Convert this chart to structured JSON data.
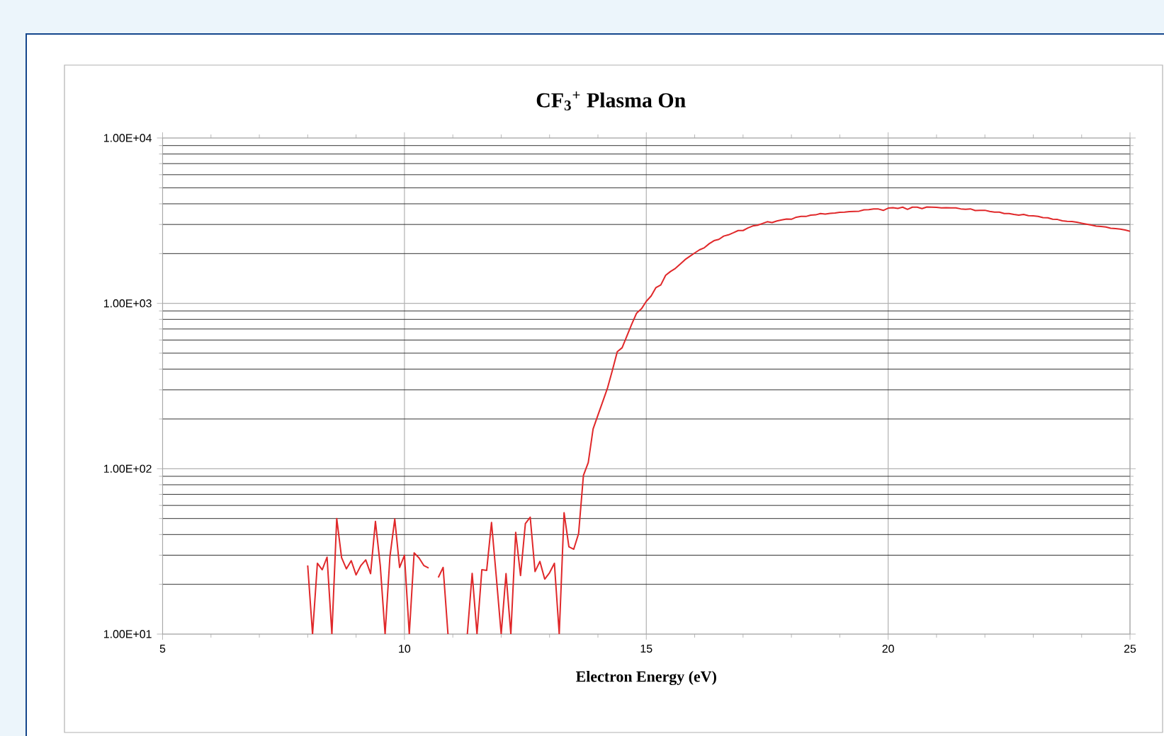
{
  "chart_data": {
    "type": "line",
    "title": "CF$_{3}$$^{+}$ Plasma On",
    "xlabel": "Electron Energy (eV)",
    "x": [
      8.0,
      8.1,
      8.2,
      8.3,
      8.4,
      8.5,
      8.6,
      8.7,
      8.8,
      8.9,
      9.0,
      9.1,
      9.2,
      9.3,
      9.4,
      9.5,
      9.6,
      9.7,
      9.8,
      9.9,
      10.0,
      10.1,
      10.2,
      10.3,
      10.4,
      10.5,
      10.6,
      10.7,
      10.8,
      10.9,
      11.0,
      11.1,
      11.2,
      11.3,
      11.4,
      11.5,
      11.6,
      11.7,
      11.8,
      11.9,
      12.0,
      12.1,
      12.2,
      12.3,
      12.4,
      12.5,
      12.6,
      12.7,
      12.8,
      12.9,
      13.0,
      13.1,
      13.2,
      13.3,
      13.4,
      13.5,
      13.6,
      13.7,
      13.8,
      13.9,
      14.0,
      14.1,
      14.2,
      14.3,
      14.4,
      14.5,
      14.6,
      14.7,
      14.8,
      14.9,
      15.0,
      15.1,
      15.2,
      15.3,
      15.4,
      15.5,
      15.6,
      15.7,
      15.8,
      15.9,
      16.0,
      16.1,
      16.2,
      16.3,
      16.4,
      16.5,
      16.6,
      16.7,
      16.8,
      16.9,
      17.0,
      17.1,
      17.2,
      17.3,
      17.4,
      17.5,
      17.6,
      17.7,
      17.8,
      17.9,
      18.0,
      18.1,
      18.2,
      18.3,
      18.4,
      18.5,
      18.6,
      18.7,
      18.8,
      18.9,
      19.0,
      19.1,
      19.2,
      19.3,
      19.4,
      19.5,
      19.6,
      19.7,
      19.8,
      19.9,
      20.0,
      20.1,
      20.2,
      20.3,
      20.4,
      20.5,
      20.6,
      20.7,
      20.8,
      20.9,
      21.0,
      21.1,
      21.2,
      21.3,
      21.4,
      21.5,
      21.6,
      21.7,
      21.8,
      21.9,
      22.0,
      22.1,
      22.2,
      22.3,
      22.4,
      22.5,
      22.6,
      22.7,
      22.8,
      22.9,
      23.0,
      23.1,
      23.2,
      23.3,
      23.4,
      23.5,
      23.6,
      23.7,
      23.8,
      23.9,
      24.0,
      24.1,
      24.2,
      24.3,
      24.4,
      24.5,
      24.6,
      24.7,
      24.8,
      24.9,
      25.0
    ],
    "series": [
      {
        "color": "#e0282a",
        "values": [
          26,
          10,
          26.8,
          24.5,
          29.2,
          10,
          50,
          29,
          24.8,
          27.8,
          22.8,
          26,
          28.1,
          23.2,
          48,
          26,
          10,
          29.4,
          49.7,
          25.3,
          30,
          10,
          31,
          28.9,
          26,
          25.1,
          null,
          22,
          25.3,
          10,
          null,
          null,
          null,
          10,
          23.3,
          10,
          24.5,
          24.3,
          47.3,
          22,
          10,
          23.2,
          10,
          41.2,
          22.6,
          46.6,
          50.9,
          23.9,
          27.5,
          21.5,
          23.5,
          26.8,
          10,
          54.2,
          33.7,
          32.6,
          40.5,
          91,
          109,
          174,
          211,
          255,
          309,
          395,
          510,
          539,
          636,
          750,
          873,
          927,
          1029,
          1108,
          1247,
          1293,
          1479,
          1559,
          1626,
          1727,
          1838,
          1926,
          2016,
          2108,
          2170,
          2295,
          2395,
          2438,
          2551,
          2597,
          2672,
          2757,
          2757,
          2855,
          2937,
          2967,
          3040,
          3116,
          3080,
          3150,
          3193,
          3237,
          3225,
          3318,
          3354,
          3354,
          3418,
          3430,
          3490,
          3470,
          3500,
          3515,
          3551,
          3560,
          3590,
          3600,
          3610,
          3680,
          3690,
          3720,
          3720,
          3650,
          3766,
          3791,
          3753,
          3816,
          3704,
          3816,
          3816,
          3741,
          3828,
          3816,
          3803,
          3778,
          3791,
          3778,
          3778,
          3728,
          3704,
          3728,
          3644,
          3655,
          3655,
          3597,
          3561,
          3561,
          3492,
          3492,
          3447,
          3413,
          3447,
          3391,
          3380,
          3358,
          3303,
          3292,
          3228,
          3217,
          3155,
          3134,
          3124,
          3093,
          3052,
          3013,
          2973,
          2935,
          2915,
          2896,
          2849,
          2830,
          2812,
          2775,
          2729
        ]
      }
    ],
    "xlim": [
      5,
      25
    ],
    "xticks": [
      5,
      10,
      15,
      20,
      25
    ],
    "ylim": [
      10,
      10000
    ],
    "yticks": [
      {
        "value": 10,
        "label": "1.00E+01"
      },
      {
        "value": 100,
        "label": "1.00E+02"
      },
      {
        "value": 1000,
        "label": "1.00E+03"
      },
      {
        "value": 10000,
        "label": "1.00E+04"
      }
    ],
    "log": true,
    "grid": true,
    "marker": "none",
    "line_style": "solid"
  }
}
